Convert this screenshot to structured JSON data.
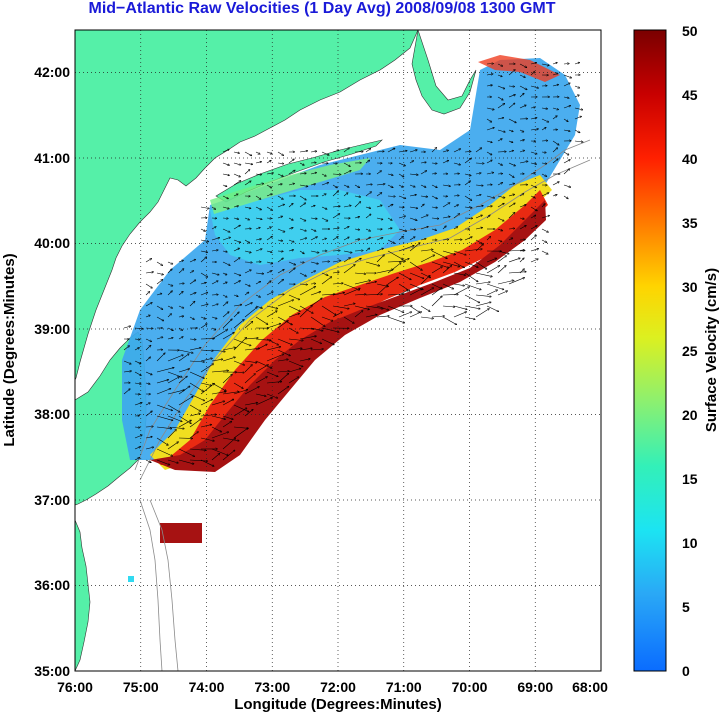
{
  "title": "Mid−Atlantic Raw Velocities (1 Day Avg) 2008/09/08 1300 GMT",
  "map": {
    "xlabel": "Longitude (Degrees:Minutes)",
    "ylabel": "Latitude (Degrees:Minutes)",
    "lon_range": [
      -76,
      -68
    ],
    "lat_range": [
      35,
      42.5
    ],
    "lon_ticks": [
      "76:00",
      "75:00",
      "74:00",
      "73:00",
      "72:00",
      "71:00",
      "70:00",
      "69:00",
      "68:00"
    ],
    "lat_ticks": [
      "35:00",
      "36:00",
      "37:00",
      "38:00",
      "39:00",
      "40:00",
      "41:00",
      "42:00"
    ],
    "land_color": "#55f0a8",
    "grid": "dotted"
  },
  "colorbar": {
    "label": "Surface Velocity (cm/s)",
    "min": 0,
    "max": 50,
    "ticks": [
      "0",
      "5",
      "10",
      "15",
      "20",
      "25",
      "30",
      "35",
      "40",
      "45",
      "50"
    ]
  }
}
